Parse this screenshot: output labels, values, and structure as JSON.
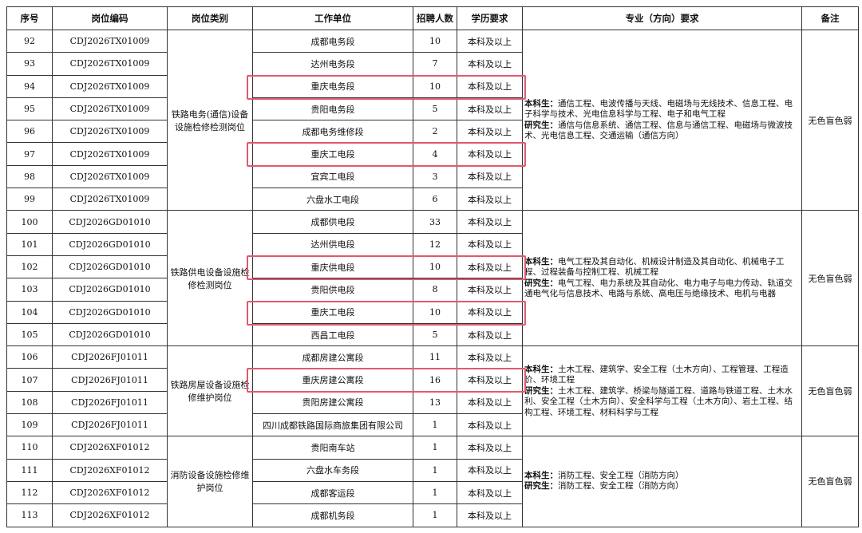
{
  "headers": [
    "序号",
    "岗位编码",
    "岗位类别",
    "工作单位",
    "招聘人数",
    "学历要求",
    "专业（方向）要求",
    "备注"
  ],
  "highlight_color": "#e05a6e",
  "groups": [
    {
      "category": "铁路电务(通信)设备设施检修检测岗位",
      "code": "CDJ2026TX01009",
      "spec_ug_label": "本科生：",
      "spec_ug": "通信工程、电波传播与天线、电磁场与无线技术、信息工程、电子科学与技术、光电信息科学与工程、电子和电气工程",
      "spec_pg_label": "研究生：",
      "spec_pg": "通信与信息系统、通信工程、信息与通信工程、电磁场与微波技术、光电信息工程、交通运输（通信方向）",
      "note": "无色盲色弱",
      "rows": [
        {
          "no": "92",
          "unit": "成都电务段",
          "count": "10",
          "edu": "本科及以上",
          "highlighted": false
        },
        {
          "no": "93",
          "unit": "达州电务段",
          "count": "7",
          "edu": "本科及以上",
          "highlighted": false
        },
        {
          "no": "94",
          "unit": "重庆电务段",
          "count": "10",
          "edu": "本科及以上",
          "highlighted": true
        },
        {
          "no": "95",
          "unit": "贵阳电务段",
          "count": "5",
          "edu": "本科及以上",
          "highlighted": false
        },
        {
          "no": "96",
          "unit": "成都电务维修段",
          "count": "2",
          "edu": "本科及以上",
          "highlighted": false
        },
        {
          "no": "97",
          "unit": "重庆工电段",
          "count": "4",
          "edu": "本科及以上",
          "highlighted": true
        },
        {
          "no": "98",
          "unit": "宜宾工电段",
          "count": "3",
          "edu": "本科及以上",
          "highlighted": false
        },
        {
          "no": "99",
          "unit": "六盘水工电段",
          "count": "6",
          "edu": "本科及以上",
          "highlighted": false
        }
      ]
    },
    {
      "category": "铁路供电设备设施检修检测岗位",
      "code": "CDJ2026GD01010",
      "spec_ug_label": "本科生：",
      "spec_ug": "电气工程及其自动化、机械设计制造及其自动化、机械电子工程、过程装备与控制工程、机械工程",
      "spec_pg_label": "研究生：",
      "spec_pg": "电气工程、电力系统及其自动化、电力电子与电力传动、轨道交通电气化与信息技术、电路与系统、高电压与绝缘技术、电机与电器",
      "note": "无色盲色弱",
      "rows": [
        {
          "no": "100",
          "unit": "成都供电段",
          "count": "33",
          "edu": "本科及以上",
          "highlighted": false
        },
        {
          "no": "101",
          "unit": "达州供电段",
          "count": "12",
          "edu": "本科及以上",
          "highlighted": false
        },
        {
          "no": "102",
          "unit": "重庆供电段",
          "count": "10",
          "edu": "本科及以上",
          "highlighted": true
        },
        {
          "no": "103",
          "unit": "贵阳供电段",
          "count": "8",
          "edu": "本科及以上",
          "highlighted": false
        },
        {
          "no": "104",
          "unit": "重庆工电段",
          "count": "10",
          "edu": "本科及以上",
          "highlighted": true
        },
        {
          "no": "105",
          "unit": "西昌工电段",
          "count": "5",
          "edu": "本科及以上",
          "highlighted": false
        }
      ]
    },
    {
      "category": "铁路房屋设备设施检修维护岗位",
      "code": "CDJ2026FJ01011",
      "spec_ug_label": "本科生：",
      "spec_ug": "土木工程、建筑学、安全工程（土木方向）、工程管理、工程造价、环境工程",
      "spec_pg_label": "研究生：",
      "spec_pg": "土木工程、建筑学、桥梁与隧道工程、道路与铁道工程、土木水利、安全工程（土木方向）、安全科学与工程（土木方向）、岩土工程、结构工程、环境工程、材料科学与工程",
      "note": "无色盲色弱",
      "rows": [
        {
          "no": "106",
          "unit": "成都房建公寓段",
          "count": "11",
          "edu": "本科及以上",
          "highlighted": false
        },
        {
          "no": "107",
          "unit": "重庆房建公寓段",
          "count": "16",
          "edu": "本科及以上",
          "highlighted": true
        },
        {
          "no": "108",
          "unit": "贵阳房建公寓段",
          "count": "13",
          "edu": "本科及以上",
          "highlighted": false
        },
        {
          "no": "109",
          "unit": "四川成都铁路国际商旅集团有限公司",
          "count": "1",
          "edu": "本科及以上",
          "highlighted": false
        }
      ]
    },
    {
      "category": "消防设备设施检修维护岗位",
      "code": "CDJ2026XF01012",
      "spec_ug_label": "本科生：",
      "spec_ug": "消防工程、安全工程（消防方向）",
      "spec_pg_label": "研究生：",
      "spec_pg": "消防工程、安全工程（消防方向）",
      "note": "无色盲色弱",
      "rows": [
        {
          "no": "110",
          "unit": "贵阳南车站",
          "count": "1",
          "edu": "本科及以上",
          "highlighted": false
        },
        {
          "no": "111",
          "unit": "六盘水车务段",
          "count": "1",
          "edu": "本科及以上",
          "highlighted": false
        },
        {
          "no": "112",
          "unit": "成都客运段",
          "count": "1",
          "edu": "本科及以上",
          "highlighted": false
        },
        {
          "no": "113",
          "unit": "成都机务段",
          "count": "1",
          "edu": "本科及以上",
          "highlighted": false
        }
      ]
    }
  ]
}
